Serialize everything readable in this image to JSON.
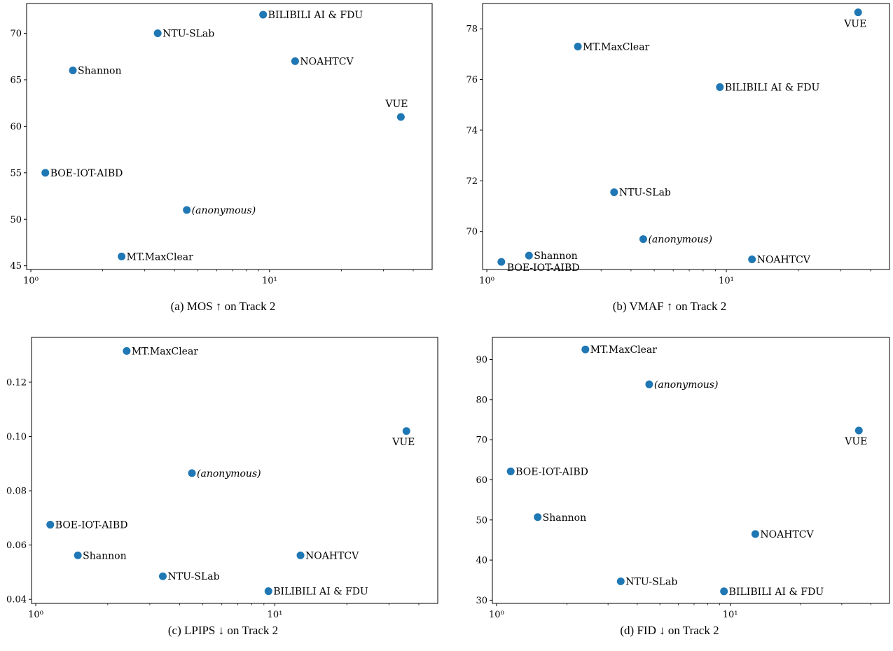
{
  "chart_data": [
    {
      "type": "scatter",
      "caption": "(a)  MOS ↑ on Track 2",
      "xscale": "log",
      "xlim": [
        0.96,
        48
      ],
      "ylim": [
        44.6,
        73.2
      ],
      "yticks": [
        45,
        50,
        55,
        60,
        65,
        70
      ],
      "yticklabels": [
        "45",
        "50",
        "55",
        "60",
        "65",
        "70"
      ],
      "xtickmajor": [
        1,
        10
      ],
      "xticklabels": [
        "10⁰",
        "10¹"
      ],
      "points": [
        {
          "name": "BILIBILI AI & FDU",
          "x": 9.4,
          "y": 72
        },
        {
          "name": "NTU-SLab",
          "x": 3.4,
          "y": 70
        },
        {
          "name": "Shannon",
          "x": 1.5,
          "y": 66
        },
        {
          "name": "NOAHTCV",
          "x": 12.8,
          "y": 67
        },
        {
          "name": "VUE",
          "x": 35.5,
          "y": 61
        },
        {
          "name": "BOE-IOT-AIBD",
          "x": 1.15,
          "y": 55
        },
        {
          "name": "(anonymous)",
          "x": 4.5,
          "y": 51
        },
        {
          "name": "MT.MaxClear",
          "x": 2.4,
          "y": 46
        }
      ]
    },
    {
      "type": "scatter",
      "caption": "(b)  VMAF ↑ on Track 2",
      "xscale": "log",
      "xlim": [
        0.96,
        48
      ],
      "ylim": [
        68.5,
        79.0
      ],
      "yticks": [
        70,
        72,
        74,
        76,
        78
      ],
      "yticklabels": [
        "70",
        "72",
        "74",
        "76",
        "78"
      ],
      "xtickmajor": [
        1,
        10
      ],
      "xticklabels": [
        "10⁰",
        "10¹"
      ],
      "points": [
        {
          "name": "VUE",
          "x": 35.5,
          "y": 78.65
        },
        {
          "name": "MT.MaxClear",
          "x": 2.4,
          "y": 77.3
        },
        {
          "name": "BILIBILI AI & FDU",
          "x": 9.4,
          "y": 75.7
        },
        {
          "name": "NTU-SLab",
          "x": 3.4,
          "y": 71.55
        },
        {
          "name": "(anonymous)",
          "x": 4.5,
          "y": 69.7
        },
        {
          "name": "Shannon",
          "x": 1.5,
          "y": 69.05
        },
        {
          "name": "BOE-IOT-AIBD",
          "x": 1.15,
          "y": 68.8
        },
        {
          "name": "NOAHTCV",
          "x": 12.8,
          "y": 68.9
        }
      ]
    },
    {
      "type": "scatter",
      "caption": "(c)  LPIPS ↓ on Track 2",
      "xscale": "log",
      "xlim": [
        0.96,
        48
      ],
      "ylim": [
        0.0385,
        0.1365
      ],
      "yticks": [
        0.04,
        0.06,
        0.08,
        0.1,
        0.12
      ],
      "yticklabels": [
        "0.04",
        "0.06",
        "0.08",
        "0.10",
        "0.12"
      ],
      "xtickmajor": [
        1,
        10
      ],
      "xticklabels": [
        "10⁰",
        "10¹"
      ],
      "points": [
        {
          "name": "MT.MaxClear",
          "x": 2.4,
          "y": 0.1315
        },
        {
          "name": "VUE",
          "x": 35.5,
          "y": 0.102
        },
        {
          "name": "(anonymous)",
          "x": 4.5,
          "y": 0.0865
        },
        {
          "name": "BOE-IOT-AIBD",
          "x": 1.15,
          "y": 0.0675
        },
        {
          "name": "Shannon",
          "x": 1.5,
          "y": 0.0562
        },
        {
          "name": "NOAHTCV",
          "x": 12.8,
          "y": 0.0562
        },
        {
          "name": "NTU-SLab",
          "x": 3.4,
          "y": 0.0485
        },
        {
          "name": "BILIBILI AI & FDU",
          "x": 9.4,
          "y": 0.043
        }
      ]
    },
    {
      "type": "scatter",
      "caption": "(d)  FID ↓ on Track 2",
      "xscale": "log",
      "xlim": [
        0.96,
        48
      ],
      "ylim": [
        29.2,
        95.5
      ],
      "yticks": [
        30,
        40,
        50,
        60,
        70,
        80,
        90
      ],
      "yticklabels": [
        "30",
        "40",
        "50",
        "60",
        "70",
        "80",
        "90"
      ],
      "xtickmajor": [
        1,
        10
      ],
      "xticklabels": [
        "10⁰",
        "10¹"
      ],
      "points": [
        {
          "name": "MT.MaxClear",
          "x": 2.4,
          "y": 92.5
        },
        {
          "name": "(anonymous)",
          "x": 4.5,
          "y": 83.8
        },
        {
          "name": "VUE",
          "x": 35.5,
          "y": 72.3
        },
        {
          "name": "BOE-IOT-AIBD",
          "x": 1.15,
          "y": 62.1
        },
        {
          "name": "Shannon",
          "x": 1.5,
          "y": 50.7
        },
        {
          "name": "NOAHTCV",
          "x": 12.8,
          "y": 46.5
        },
        {
          "name": "NTU-SLab",
          "x": 3.4,
          "y": 34.7
        },
        {
          "name": "BILIBILI AI & FDU",
          "x": 9.4,
          "y": 32.2
        }
      ]
    }
  ],
  "colors": {
    "marker": "#1f77b4",
    "axis": "#000000"
  }
}
